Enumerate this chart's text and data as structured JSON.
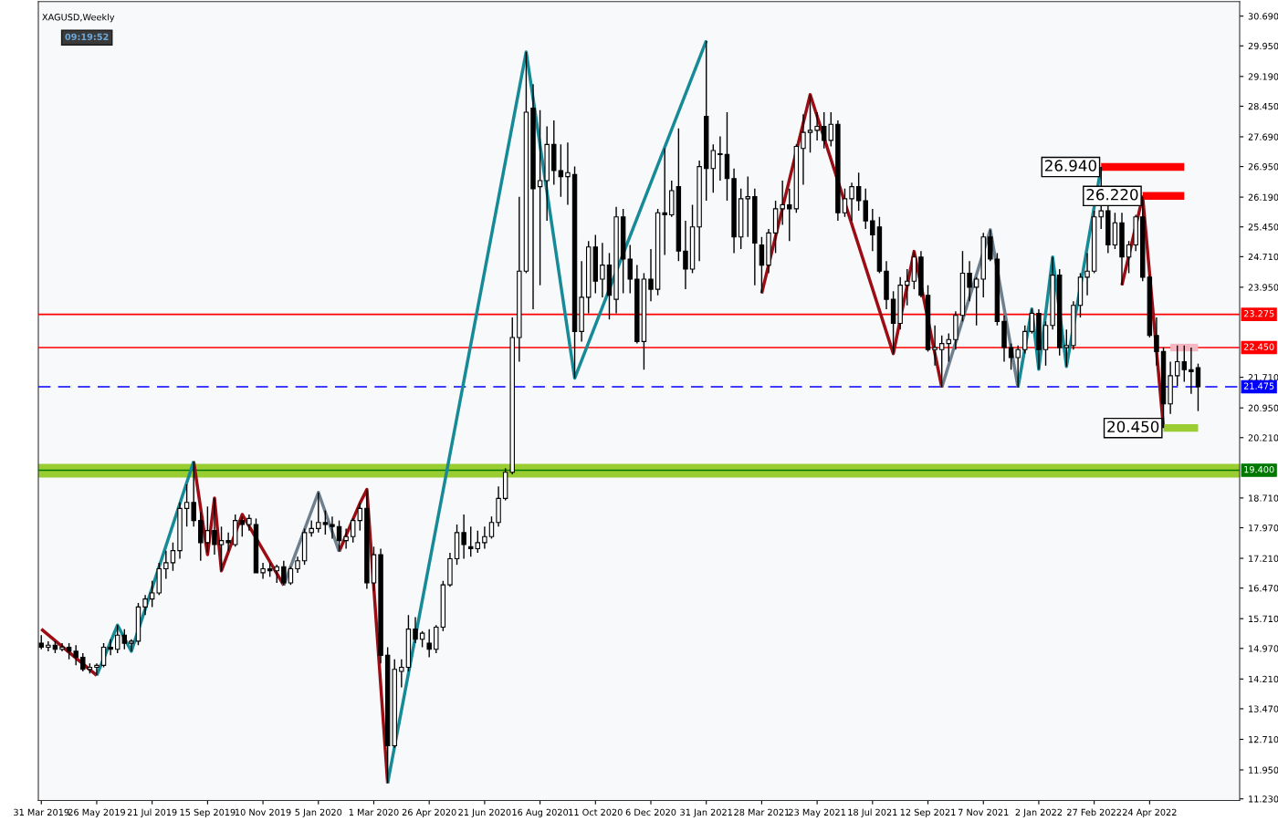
{
  "chart_data": {
    "type": "candlestick",
    "title": "XAGUSD,Weekly",
    "x": [
      "2019-03-31",
      "2019-04-07",
      "2019-04-14",
      "2019-04-21",
      "2019-04-28",
      "2019-05-05",
      "2019-05-12",
      "2019-05-19",
      "2019-05-26",
      "2019-06-02",
      "2019-06-09",
      "2019-06-16",
      "2019-06-23",
      "2019-06-30",
      "2019-07-07",
      "2019-07-14",
      "2019-07-21",
      "2019-07-28",
      "2019-08-04",
      "2019-08-11",
      "2019-08-18",
      "2019-08-25",
      "2019-09-01",
      "2019-09-08",
      "2019-09-15",
      "2019-09-22",
      "2019-09-29",
      "2019-10-06",
      "2019-10-13",
      "2019-10-20",
      "2019-10-27",
      "2019-11-03",
      "2019-11-10",
      "2019-11-17",
      "2019-11-24",
      "2019-12-01",
      "2019-12-08",
      "2019-12-15",
      "2019-12-22",
      "2019-12-29",
      "2020-01-05",
      "2020-01-12",
      "2020-01-19",
      "2020-01-26",
      "2020-02-02",
      "2020-02-09",
      "2020-02-16",
      "2020-02-23",
      "2020-03-01",
      "2020-03-08",
      "2020-03-15",
      "2020-03-22",
      "2020-03-29",
      "2020-04-05",
      "2020-04-12",
      "2020-04-19",
      "2020-04-26",
      "2020-05-03",
      "2020-05-10",
      "2020-05-17",
      "2020-05-24",
      "2020-05-31",
      "2020-06-07",
      "2020-06-14",
      "2020-06-21",
      "2020-06-28",
      "2020-07-05",
      "2020-07-12",
      "2020-07-19",
      "2020-07-26",
      "2020-08-02",
      "2020-08-09",
      "2020-08-16",
      "2020-08-23",
      "2020-08-30",
      "2020-09-06",
      "2020-09-13",
      "2020-09-20",
      "2020-09-27",
      "2020-10-04",
      "2020-10-11",
      "2020-10-18",
      "2020-10-25",
      "2020-11-01",
      "2020-11-08",
      "2020-11-15",
      "2020-11-22",
      "2020-11-29",
      "2020-12-06",
      "2020-12-13",
      "2020-12-20",
      "2020-12-27",
      "2021-01-03",
      "2021-01-10",
      "2021-01-17",
      "2021-01-24",
      "2021-01-31",
      "2021-02-07",
      "2021-02-14",
      "2021-02-21",
      "2021-02-28",
      "2021-03-07",
      "2021-03-14",
      "2021-03-21",
      "2021-03-28",
      "2021-04-04",
      "2021-04-11",
      "2021-04-18",
      "2021-04-25",
      "2021-05-02",
      "2021-05-09",
      "2021-05-16",
      "2021-05-23",
      "2021-05-30",
      "2021-06-06",
      "2021-06-13",
      "2021-06-20",
      "2021-06-27",
      "2021-07-04",
      "2021-07-11",
      "2021-07-18",
      "2021-07-25",
      "2021-08-01",
      "2021-08-08",
      "2021-08-15",
      "2021-08-22",
      "2021-08-29",
      "2021-09-05",
      "2021-09-12",
      "2021-09-19",
      "2021-09-26",
      "2021-10-03",
      "2021-10-10",
      "2021-10-17",
      "2021-10-24",
      "2021-10-31",
      "2021-11-07",
      "2021-11-14",
      "2021-11-21",
      "2021-11-28",
      "2021-12-05",
      "2021-12-12",
      "2021-12-19",
      "2021-12-26",
      "2022-01-02",
      "2022-01-09",
      "2022-01-16",
      "2022-01-23",
      "2022-01-30",
      "2022-02-06",
      "2022-02-13",
      "2022-02-20",
      "2022-02-27",
      "2022-03-06",
      "2022-03-13",
      "2022-03-20",
      "2022-03-27",
      "2022-04-03",
      "2022-04-10",
      "2022-04-17",
      "2022-04-24",
      "2022-05-01",
      "2022-05-08",
      "2022-05-15",
      "2022-05-22",
      "2022-05-29",
      "2022-06-05",
      "2022-06-12"
    ],
    "ohlc": [
      [
        15.1,
        15.3,
        14.95,
        15.0
      ],
      [
        15.0,
        15.15,
        14.9,
        15.05
      ],
      [
        15.05,
        15.15,
        14.85,
        14.95
      ],
      [
        14.95,
        15.1,
        14.9,
        15.0
      ],
      [
        15.0,
        15.1,
        14.7,
        14.9
      ],
      [
        14.9,
        15.05,
        14.55,
        14.75
      ],
      [
        14.75,
        14.85,
        14.4,
        14.45
      ],
      [
        14.45,
        14.6,
        14.35,
        14.5
      ],
      [
        14.5,
        14.6,
        14.3,
        14.55
      ],
      [
        14.55,
        15.1,
        14.5,
        15.0
      ],
      [
        15.0,
        15.2,
        14.8,
        14.95
      ],
      [
        14.95,
        15.55,
        14.85,
        15.3
      ],
      [
        15.3,
        15.45,
        14.95,
        15.1
      ],
      [
        15.1,
        15.2,
        14.9,
        15.15
      ],
      [
        15.15,
        16.1,
        15.05,
        16.0
      ],
      [
        16.0,
        16.3,
        15.8,
        16.2
      ],
      [
        16.2,
        16.65,
        16.0,
        16.35
      ],
      [
        16.35,
        17.1,
        16.3,
        16.95
      ],
      [
        16.95,
        17.4,
        16.7,
        17.1
      ],
      [
        17.1,
        17.6,
        16.9,
        17.4
      ],
      [
        17.4,
        18.6,
        17.2,
        18.45
      ],
      [
        18.45,
        19.05,
        18.0,
        18.6
      ],
      [
        18.6,
        19.62,
        18.0,
        18.15
      ],
      [
        18.15,
        18.35,
        17.15,
        17.6
      ],
      [
        17.6,
        18.5,
        17.35,
        17.9
      ],
      [
        17.9,
        18.71,
        17.3,
        17.55
      ],
      [
        17.55,
        18.0,
        16.9,
        17.65
      ],
      [
        17.65,
        17.85,
        17.4,
        17.6
      ],
      [
        17.55,
        18.3,
        17.5,
        18.15
      ],
      [
        18.15,
        18.25,
        17.75,
        18.05
      ],
      [
        18.05,
        18.3,
        17.9,
        18.2
      ],
      [
        18.05,
        18.2,
        16.85,
        16.85
      ],
      [
        16.85,
        17.1,
        16.7,
        16.95
      ],
      [
        16.95,
        17.1,
        16.75,
        16.9
      ],
      [
        16.9,
        17.05,
        16.6,
        17.0
      ],
      [
        17.0,
        17.15,
        16.54,
        16.6
      ],
      [
        16.6,
        17.0,
        16.55,
        16.95
      ],
      [
        16.95,
        17.25,
        16.85,
        17.15
      ],
      [
        17.15,
        17.95,
        17.05,
        17.85
      ],
      [
        17.85,
        18.15,
        17.75,
        17.95
      ],
      [
        17.95,
        18.85,
        17.85,
        18.1
      ],
      [
        18.1,
        18.4,
        17.8,
        18.05
      ],
      [
        18.05,
        18.25,
        17.7,
        18.0
      ],
      [
        18.0,
        18.15,
        17.38,
        17.65
      ],
      [
        17.65,
        17.95,
        17.45,
        17.75
      ],
      [
        17.75,
        18.2,
        17.6,
        18.15
      ],
      [
        18.15,
        18.58,
        17.9,
        18.45
      ],
      [
        18.45,
        18.92,
        16.45,
        16.6
      ],
      [
        16.6,
        17.5,
        16.4,
        17.3
      ],
      [
        17.3,
        17.45,
        14.6,
        14.8
      ],
      [
        14.8,
        15.0,
        11.62,
        12.55
      ],
      [
        12.55,
        14.7,
        12.5,
        14.45
      ],
      [
        14.4,
        14.7,
        14.0,
        14.5
      ],
      [
        14.5,
        15.8,
        14.4,
        15.45
      ],
      [
        15.45,
        15.75,
        15.1,
        15.2
      ],
      [
        15.2,
        15.4,
        15.0,
        15.35
      ],
      [
        15.1,
        15.45,
        14.75,
        14.95
      ],
      [
        14.95,
        15.55,
        14.85,
        15.5
      ],
      [
        15.5,
        16.65,
        15.4,
        16.55
      ],
      [
        16.55,
        17.35,
        16.5,
        17.2
      ],
      [
        17.2,
        18.05,
        17.05,
        17.85
      ],
      [
        17.85,
        18.3,
        17.2,
        17.55
      ],
      [
        17.5,
        18.0,
        17.25,
        17.45
      ],
      [
        17.45,
        17.9,
        17.35,
        17.6
      ],
      [
        17.6,
        18.0,
        17.45,
        17.75
      ],
      [
        17.75,
        18.25,
        17.7,
        18.1
      ],
      [
        18.1,
        19.0,
        18.0,
        18.7
      ],
      [
        18.7,
        19.45,
        18.65,
        19.35
      ],
      [
        19.35,
        23.2,
        19.3,
        22.7
      ],
      [
        22.7,
        26.2,
        22.1,
        24.35
      ],
      [
        24.35,
        29.8,
        24.3,
        28.3
      ],
      [
        28.4,
        29.0,
        23.4,
        26.4
      ],
      [
        26.45,
        28.35,
        24.0,
        26.6
      ],
      [
        26.6,
        27.95,
        25.6,
        27.5
      ],
      [
        27.5,
        28.1,
        26.5,
        26.85
      ],
      [
        26.85,
        27.5,
        26.2,
        26.7
      ],
      [
        26.7,
        27.55,
        26.0,
        26.8
      ],
      [
        26.75,
        26.95,
        21.69,
        22.85
      ],
      [
        22.85,
        24.6,
        22.6,
        23.7
      ],
      [
        23.7,
        25.1,
        23.3,
        24.95
      ],
      [
        24.95,
        25.25,
        23.8,
        24.1
      ],
      [
        24.15,
        25.05,
        23.7,
        24.5
      ],
      [
        24.5,
        24.8,
        23.15,
        23.75
      ],
      [
        23.65,
        25.95,
        23.3,
        25.7
      ],
      [
        25.7,
        25.9,
        23.8,
        24.65
      ],
      [
        24.65,
        25.0,
        23.8,
        24.15
      ],
      [
        24.15,
        24.5,
        22.55,
        22.6
      ],
      [
        22.6,
        24.3,
        21.9,
        24.15
      ],
      [
        24.15,
        24.9,
        23.6,
        23.9
      ],
      [
        23.9,
        25.9,
        23.75,
        25.8
      ],
      [
        25.8,
        27.4,
        24.75,
        25.75
      ],
      [
        25.75,
        26.6,
        25.7,
        26.35
      ],
      [
        26.45,
        27.9,
        24.6,
        24.85
      ],
      [
        24.85,
        25.6,
        23.9,
        24.4
      ],
      [
        24.4,
        26.0,
        24.3,
        25.45
      ],
      [
        25.45,
        27.1,
        24.6,
        26.95
      ],
      [
        28.2,
        30.08,
        26.1,
        26.9
      ],
      [
        26.9,
        27.5,
        26.3,
        27.35
      ],
      [
        27.25,
        27.7,
        26.6,
        27.25
      ],
      [
        27.25,
        28.3,
        26.1,
        26.65
      ],
      [
        26.65,
        26.9,
        24.8,
        25.2
      ],
      [
        25.2,
        26.4,
        24.9,
        26.15
      ],
      [
        26.15,
        26.7,
        25.2,
        26.2
      ],
      [
        26.2,
        26.4,
        24.0,
        25.05
      ],
      [
        25.0,
        25.2,
        23.8,
        24.5
      ],
      [
        24.5,
        25.4,
        24.3,
        25.3
      ],
      [
        25.3,
        26.1,
        24.8,
        25.9
      ],
      [
        25.9,
        26.6,
        25.5,
        26.0
      ],
      [
        26.0,
        26.4,
        25.1,
        25.9
      ],
      [
        25.9,
        27.5,
        25.8,
        27.45
      ],
      [
        27.4,
        28.25,
        26.5,
        27.8
      ],
      [
        27.8,
        28.74,
        27.3,
        27.85
      ],
      [
        27.85,
        28.3,
        27.6,
        27.95
      ],
      [
        27.95,
        28.3,
        27.4,
        27.6
      ],
      [
        27.6,
        28.3,
        27.45,
        28.0
      ],
      [
        28.0,
        28.1,
        25.6,
        25.8
      ],
      [
        25.8,
        26.4,
        25.7,
        26.15
      ],
      [
        26.15,
        26.55,
        25.6,
        26.45
      ],
      [
        26.45,
        26.8,
        25.85,
        26.1
      ],
      [
        26.1,
        26.4,
        25.4,
        25.6
      ],
      [
        25.6,
        25.9,
        24.85,
        25.25
      ],
      [
        25.45,
        25.7,
        24.3,
        24.35
      ],
      [
        24.35,
        24.6,
        23.4,
        23.65
      ],
      [
        23.65,
        23.85,
        22.3,
        23.05
      ],
      [
        23.05,
        24.2,
        22.9,
        24.0
      ],
      [
        24.0,
        24.4,
        23.5,
        24.1
      ],
      [
        24.1,
        24.84,
        23.9,
        24.7
      ],
      [
        24.7,
        24.85,
        23.7,
        23.75
      ],
      [
        23.75,
        24.0,
        22.35,
        22.4
      ],
      [
        22.4,
        23.0,
        22.0,
        22.45
      ],
      [
        22.4,
        22.75,
        21.46,
        22.55
      ],
      [
        22.55,
        22.8,
        22.1,
        22.65
      ],
      [
        22.65,
        23.35,
        22.4,
        23.25
      ],
      [
        23.25,
        24.85,
        23.1,
        24.3
      ],
      [
        24.3,
        24.6,
        23.6,
        23.95
      ],
      [
        23.95,
        24.2,
        23.0,
        24.15
      ],
      [
        24.15,
        25.3,
        23.7,
        25.2
      ],
      [
        25.2,
        25.38,
        24.6,
        24.65
      ],
      [
        24.65,
        24.8,
        23.0,
        23.1
      ],
      [
        23.1,
        23.25,
        22.1,
        22.45
      ],
      [
        22.45,
        22.55,
        21.9,
        22.2
      ],
      [
        22.2,
        22.5,
        21.46,
        22.4
      ],
      [
        22.4,
        23.0,
        22.3,
        22.85
      ],
      [
        22.85,
        23.41,
        22.8,
        23.3
      ],
      [
        23.3,
        23.4,
        21.91,
        22.4
      ],
      [
        22.4,
        23.1,
        22.0,
        23.0
      ],
      [
        23.0,
        24.7,
        22.9,
        24.25
      ],
      [
        24.25,
        24.4,
        22.25,
        22.45
      ],
      [
        22.45,
        22.9,
        21.98,
        22.5
      ],
      [
        22.5,
        23.6,
        22.4,
        23.5
      ],
      [
        23.5,
        24.3,
        23.2,
        24.2
      ],
      [
        24.2,
        24.8,
        23.75,
        24.35
      ],
      [
        24.35,
        25.85,
        24.3,
        25.7
      ],
      [
        25.7,
        26.94,
        25.4,
        25.85
      ],
      [
        25.85,
        26.0,
        24.8,
        25.0
      ],
      [
        25.0,
        25.8,
        24.9,
        25.55
      ],
      [
        25.55,
        25.8,
        24.0,
        24.7
      ],
      [
        24.7,
        25.1,
        24.3,
        25.0
      ],
      [
        25.0,
        25.75,
        24.85,
        25.7
      ],
      [
        25.7,
        26.2,
        24.1,
        24.2
      ],
      [
        24.2,
        24.25,
        22.7,
        22.75
      ],
      [
        22.75,
        23.2,
        22.0,
        22.35
      ],
      [
        22.35,
        22.45,
        20.45,
        21.05
      ],
      [
        21.05,
        22.1,
        20.8,
        21.75
      ],
      [
        21.75,
        22.5,
        21.5,
        22.1
      ],
      [
        22.1,
        22.5,
        21.6,
        21.9
      ],
      [
        21.9,
        22.45,
        21.3,
        21.85
      ],
      [
        21.95,
        22.05,
        20.87,
        21.475
      ]
    ],
    "series": [
      {
        "type": "line",
        "color": "#9b0d14",
        "x": [
          "2019-03-31",
          "2019-05-26",
          "2019-06-16",
          "2019-09-01",
          "2019-09-15",
          "2019-09-22",
          "2019-09-29",
          "2019-10-20",
          "2019-12-01",
          "2020-01-05",
          "2020-01-26",
          "2020-02-16",
          "2020-02-23",
          "2020-03-15",
          "2021-01-31",
          "2021-03-28",
          "2021-05-16",
          "2021-08-08",
          "2021-08-29",
          "2021-09-26",
          "2022-03-06",
          "2022-03-27",
          "2022-04-17",
          "2022-05-08"
        ],
        "values": [
          15.45,
          14.3,
          null,
          19.62,
          17.3,
          18.71,
          16.9,
          18.3,
          16.54,
          null,
          17.38,
          18.58,
          18.92,
          11.62,
          null,
          23.8,
          28.74,
          22.3,
          24.84,
          21.46,
          null,
          24.0,
          26.2,
          20.45
        ]
      },
      {
        "type": "line",
        "color": "#168a96",
        "x": [
          "2019-05-26",
          "2019-06-16",
          "2019-06-30",
          "2019-09-01",
          "2020-01-05",
          "2020-03-15",
          "2020-08-02",
          "2020-09-20",
          "2021-01-31",
          "2021-09-26",
          "2021-12-12",
          "2021-12-26",
          "2022-01-02",
          "2022-01-16",
          "2022-01-30",
          "2022-03-06"
        ],
        "values": [
          14.3,
          15.55,
          14.9,
          19.62,
          null,
          11.62,
          29.8,
          21.69,
          30.08,
          null,
          21.46,
          23.41,
          21.91,
          24.7,
          21.98,
          26.94
        ]
      },
      {
        "type": "line",
        "color": "#6e7f8e",
        "x": [
          "2019-12-01",
          "2020-01-05",
          "2020-01-26",
          "2021-08-29",
          "2021-09-26",
          "2021-11-14",
          "2021-12-12"
        ],
        "values": [
          16.54,
          18.85,
          17.38,
          null,
          21.46,
          25.38,
          21.46
        ]
      },
      {
        "type": "line",
        "color": "#ff0000",
        "x": [
          "2022-03-06",
          "2022-05-29"
        ],
        "values": [
          26.94,
          26.94
        ]
      },
      {
        "type": "line",
        "color": "#ff0000",
        "x": [
          "2022-04-17",
          "2022-05-29"
        ],
        "values": [
          26.22,
          26.22
        ]
      },
      {
        "type": "line",
        "color": "#9acd32",
        "x": [
          "2022-05-08",
          "2022-06-12"
        ],
        "values": [
          20.45,
          20.45
        ]
      },
      {
        "type": "line",
        "color": "#f4b6c0",
        "x": [
          "2022-05-15",
          "2022-06-12"
        ],
        "values": [
          22.45,
          22.45
        ]
      }
    ],
    "ref_lines": [
      {
        "axis": "y",
        "value": 23.275,
        "label": "23.275",
        "color": "#ff0000",
        "line_style": "solid"
      },
      {
        "axis": "y",
        "value": 22.45,
        "label": "22.450",
        "color": "#ff0000",
        "line_style": "solid"
      },
      {
        "axis": "y",
        "value": 21.475,
        "label": "21.475",
        "color": "#0000ff",
        "line_style": "dashed"
      },
      {
        "axis": "y",
        "value": 19.4,
        "label": "19.400",
        "color": "#007800",
        "line_style": "solid"
      }
    ],
    "bands": [
      {
        "axis": "y",
        "from": 19.22,
        "to": 19.56,
        "color": "#9acd32"
      }
    ],
    "annotations": [
      "09:19:52",
      {
        "text": "26.940",
        "x": "2022-03-06",
        "y": 26.94
      },
      {
        "text": "26.220",
        "x": "2022-04-17",
        "y": 26.22
      },
      {
        "text": "20.450",
        "x": "2022-05-08",
        "y": 20.45
      }
    ],
    "xlim": [
      "2019-03-28",
      "2022-07-24"
    ],
    "ylim": [
      11.19,
      31.05
    ],
    "xticks": [
      {
        "value": "2019-03-31",
        "label": "31 Mar 2019"
      },
      {
        "value": "2019-05-26",
        "label": "26 May 2019"
      },
      {
        "value": "2019-07-21",
        "label": "21 Jul 2019"
      },
      {
        "value": "2019-09-15",
        "label": "15 Sep 2019"
      },
      {
        "value": "2019-11-10",
        "label": "10 Nov 2019"
      },
      {
        "value": "2020-01-05",
        "label": "5 Jan 2020"
      },
      {
        "value": "2020-03-01",
        "label": "1 Mar 2020"
      },
      {
        "value": "2020-04-26",
        "label": "26 Apr 2020"
      },
      {
        "value": "2020-06-21",
        "label": "21 Jun 2020"
      },
      {
        "value": "2020-08-16",
        "label": "16 Aug 2020"
      },
      {
        "value": "2020-10-11",
        "label": "11 Oct 2020"
      },
      {
        "value": "2020-12-06",
        "label": "6 Dec 2020"
      },
      {
        "value": "2021-01-31",
        "label": "31 Jan 2021"
      },
      {
        "value": "2021-03-28",
        "label": "28 Mar 2021"
      },
      {
        "value": "2021-05-23",
        "label": "23 May 2021"
      },
      {
        "value": "2021-07-18",
        "label": "18 Jul 2021"
      },
      {
        "value": "2021-09-12",
        "label": "12 Sep 2021"
      },
      {
        "value": "2021-11-07",
        "label": "7 Nov 2021"
      },
      {
        "value": "2022-01-02",
        "label": "2 Jan 2022"
      },
      {
        "value": "2022-02-27",
        "label": "27 Feb 2022"
      },
      {
        "value": "2022-04-24",
        "label": "24 Apr 2022"
      }
    ],
    "yticks": [
      {
        "value": 30.69,
        "label": "30.690"
      },
      {
        "value": 29.95,
        "label": "29.950"
      },
      {
        "value": 29.19,
        "label": "29.190"
      },
      {
        "value": 28.45,
        "label": "28.450"
      },
      {
        "value": 27.69,
        "label": "27.690"
      },
      {
        "value": 26.95,
        "label": "26.950"
      },
      {
        "value": 26.19,
        "label": "26.190"
      },
      {
        "value": 25.45,
        "label": "25.450"
      },
      {
        "value": 24.71,
        "label": "24.710"
      },
      {
        "value": 23.95,
        "label": "23.950"
      },
      {
        "value": 21.71,
        "label": "21.710"
      },
      {
        "value": 20.95,
        "label": "20.950"
      },
      {
        "value": 20.21,
        "label": "20.210"
      },
      {
        "value": 18.71,
        "label": "18.710"
      },
      {
        "value": 17.97,
        "label": "17.970"
      },
      {
        "value": 17.21,
        "label": "17.210"
      },
      {
        "value": 16.47,
        "label": "16.470"
      },
      {
        "value": 15.71,
        "label": "15.710"
      },
      {
        "value": 14.97,
        "label": "14.970"
      },
      {
        "value": 14.21,
        "label": "14.210"
      },
      {
        "value": 13.47,
        "label": "13.470"
      },
      {
        "value": 12.71,
        "label": "12.710"
      },
      {
        "value": 11.95,
        "label": "11.950"
      },
      {
        "value": 11.23,
        "label": "11.230"
      }
    ],
    "grid": false,
    "legend": false
  }
}
